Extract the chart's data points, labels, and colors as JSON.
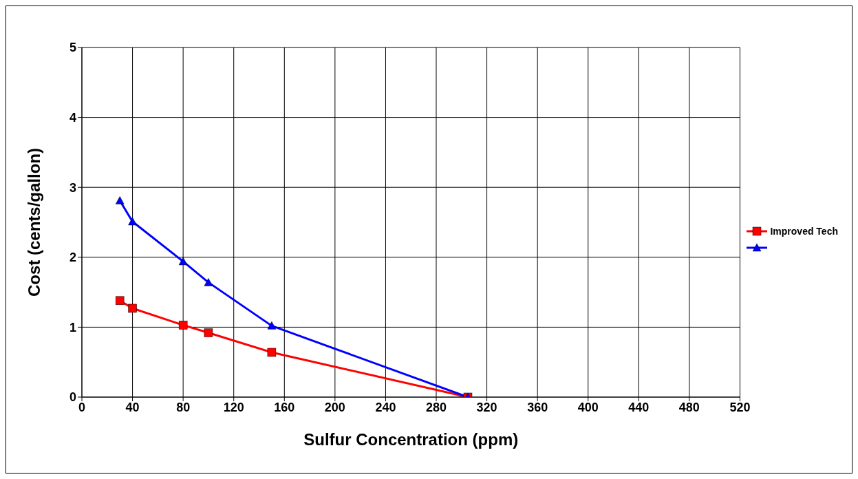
{
  "chart_data": {
    "type": "line",
    "xlabel": "Sulfur Concentration (ppm)",
    "ylabel": "Cost (cents/gallon)",
    "xlim": [
      0,
      520
    ],
    "ylim": [
      0,
      5
    ],
    "xticks": [
      0,
      40,
      80,
      120,
      160,
      200,
      240,
      280,
      320,
      360,
      400,
      440,
      480,
      520
    ],
    "yticks": [
      0,
      1,
      2,
      3,
      4,
      5
    ],
    "grid": true,
    "legend": "right",
    "series": [
      {
        "name": "Improved Tech",
        "color": "#ff0000",
        "marker": "square",
        "x": [
          30,
          40,
          80,
          100,
          150,
          305
        ],
        "values": [
          1.38,
          1.27,
          1.03,
          0.92,
          0.64,
          0
        ]
      },
      {
        "color": "#0000ff",
        "marker": "triangle",
        "x": [
          30,
          40,
          80,
          100,
          150,
          305
        ],
        "values": [
          2.81,
          2.51,
          1.94,
          1.64,
          1.02,
          0
        ]
      }
    ]
  }
}
